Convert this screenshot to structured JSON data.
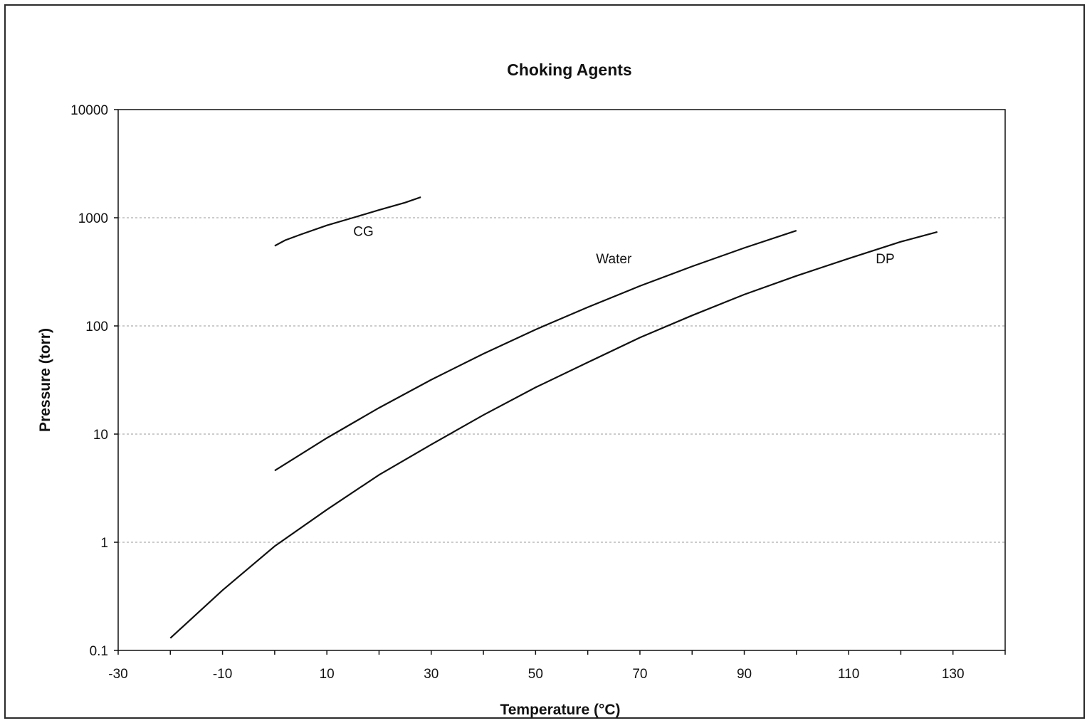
{
  "chart_data": {
    "type": "line",
    "title": "Choking Agents",
    "xlabel": "Temperature (°C)",
    "ylabel": "Pressure (torr)",
    "y_scale": "log",
    "xlim": [
      -30,
      140
    ],
    "ylim": [
      0.1,
      10000
    ],
    "x_ticks": [
      -30,
      -10,
      10,
      30,
      50,
      70,
      90,
      110,
      130
    ],
    "x_tick_labels": [
      "-30",
      "-10",
      "10",
      "30",
      "50",
      "70",
      "90",
      "110",
      "130"
    ],
    "y_ticks": [
      0.1,
      1,
      10,
      100,
      1000,
      10000
    ],
    "y_tick_labels": [
      "0.1",
      "1",
      "10",
      "100",
      "1000",
      "10000"
    ],
    "grid": "horizontal-dashed",
    "series": [
      {
        "name": "CG",
        "x": [
          0,
          2,
          5,
          10,
          15,
          20,
          25,
          28
        ],
        "y": [
          550,
          620,
          700,
          850,
          1000,
          1180,
          1380,
          1550
        ]
      },
      {
        "name": "Water",
        "x": [
          0,
          10,
          20,
          30,
          40,
          50,
          60,
          70,
          80,
          90,
          100
        ],
        "y": [
          4.6,
          9.2,
          17.5,
          31.8,
          55.3,
          92.5,
          149,
          234,
          355,
          526,
          760
        ]
      },
      {
        "name": "DP",
        "x": [
          -20,
          -10,
          0,
          10,
          20,
          30,
          40,
          50,
          60,
          70,
          80,
          90,
          100,
          110,
          120,
          127
        ],
        "y": [
          0.13,
          0.36,
          0.92,
          2.0,
          4.2,
          8.0,
          15,
          27,
          46,
          78,
          125,
          195,
          290,
          420,
          600,
          740
        ]
      }
    ]
  }
}
